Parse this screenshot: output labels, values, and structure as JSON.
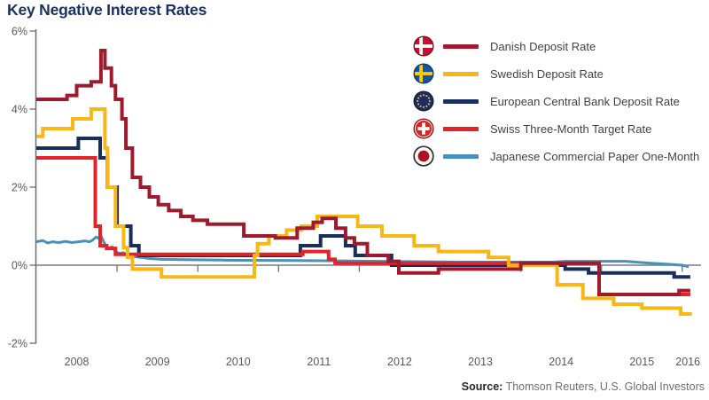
{
  "title": "Key Negative Interest Rates",
  "source": {
    "label": "Source:",
    "text": " Thomson Reuters, U.S. Global Investors"
  },
  "chart_data": {
    "type": "line",
    "step": true,
    "title": "Key Negative Interest Rates",
    "xlabel": "",
    "ylabel": "",
    "grid": false,
    "legend_position": "upper right",
    "xlim": [
      2008,
      2016.2
    ],
    "ylim": [
      -2,
      6
    ],
    "x_axis": {
      "labels": [
        "2008",
        "2009",
        "2010",
        "2011",
        "2012",
        "2013",
        "2014",
        "2015",
        "2016"
      ],
      "tick_years": [
        2009,
        2010,
        2011,
        2012,
        2013,
        2014,
        2015,
        2016
      ]
    },
    "y_axis": {
      "ticks": [
        {
          "label": "6%",
          "value": 6
        },
        {
          "label": "4%",
          "value": 4
        },
        {
          "label": "2%",
          "value": 2
        },
        {
          "label": "0%",
          "value": 0
        },
        {
          "label": "-2%",
          "value": -2
        }
      ]
    },
    "axis_color": "#6D6E71",
    "zero_line_color": "#7B7C7F",
    "tick_label_color": "#58595B",
    "series": [
      {
        "name": "Danish Deposit Rate",
        "flag": "denmark",
        "color": "#9E1B2E",
        "line_width": 4,
        "points": [
          [
            2008.0,
            4.25
          ],
          [
            2008.38,
            4.25
          ],
          [
            2008.38,
            4.35
          ],
          [
            2008.5,
            4.35
          ],
          [
            2008.5,
            4.6
          ],
          [
            2008.68,
            4.6
          ],
          [
            2008.68,
            4.7
          ],
          [
            2008.8,
            4.7
          ],
          [
            2008.8,
            5.5
          ],
          [
            2008.85,
            5.5
          ],
          [
            2008.85,
            5.05
          ],
          [
            2008.93,
            5.05
          ],
          [
            2008.93,
            4.6
          ],
          [
            2008.98,
            4.6
          ],
          [
            2008.98,
            4.25
          ],
          [
            2009.06,
            4.25
          ],
          [
            2009.06,
            3.75
          ],
          [
            2009.11,
            3.75
          ],
          [
            2009.11,
            3.0
          ],
          [
            2009.19,
            3.0
          ],
          [
            2009.19,
            2.25
          ],
          [
            2009.29,
            2.25
          ],
          [
            2009.29,
            2.0
          ],
          [
            2009.4,
            2.0
          ],
          [
            2009.4,
            1.75
          ],
          [
            2009.51,
            1.75
          ],
          [
            2009.51,
            1.55
          ],
          [
            2009.64,
            1.55
          ],
          [
            2009.64,
            1.4
          ],
          [
            2009.79,
            1.4
          ],
          [
            2009.79,
            1.25
          ],
          [
            2009.94,
            1.25
          ],
          [
            2009.94,
            1.15
          ],
          [
            2010.12,
            1.15
          ],
          [
            2010.12,
            1.05
          ],
          [
            2010.57,
            1.05
          ],
          [
            2010.57,
            0.75
          ],
          [
            2010.96,
            0.75
          ],
          [
            2010.96,
            0.7
          ],
          [
            2011.23,
            0.7
          ],
          [
            2011.23,
            0.95
          ],
          [
            2011.43,
            0.95
          ],
          [
            2011.43,
            1.1
          ],
          [
            2011.54,
            1.1
          ],
          [
            2011.54,
            1.2
          ],
          [
            2011.71,
            1.2
          ],
          [
            2011.71,
            0.95
          ],
          [
            2011.83,
            0.95
          ],
          [
            2011.83,
            0.7
          ],
          [
            2011.94,
            0.7
          ],
          [
            2011.94,
            0.55
          ],
          [
            2012.1,
            0.55
          ],
          [
            2012.1,
            0.25
          ],
          [
            2012.36,
            0.25
          ],
          [
            2012.36,
            0.1
          ],
          [
            2012.49,
            0.1
          ],
          [
            2012.49,
            -0.2
          ],
          [
            2012.98,
            -0.2
          ],
          [
            2012.98,
            -0.1
          ],
          [
            2014.0,
            -0.1
          ],
          [
            2014.0,
            0.05
          ],
          [
            2014.97,
            0.05
          ],
          [
            2014.97,
            -0.75
          ],
          [
            2015.96,
            -0.75
          ],
          [
            2015.96,
            -0.65
          ],
          [
            2016.1,
            -0.65
          ]
        ]
      },
      {
        "name": "Swedish Deposit Rate",
        "flag": "sweden",
        "color": "#F9B716",
        "line_width": 4,
        "points": [
          [
            2008.0,
            3.3
          ],
          [
            2008.08,
            3.3
          ],
          [
            2008.08,
            3.5
          ],
          [
            2008.45,
            3.5
          ],
          [
            2008.45,
            3.75
          ],
          [
            2008.68,
            3.75
          ],
          [
            2008.68,
            4.0
          ],
          [
            2008.85,
            4.0
          ],
          [
            2008.85,
            3.0
          ],
          [
            2008.88,
            3.0
          ],
          [
            2008.88,
            2.0
          ],
          [
            2008.98,
            2.0
          ],
          [
            2008.98,
            1.0
          ],
          [
            2009.08,
            1.0
          ],
          [
            2009.08,
            0.45
          ],
          [
            2009.13,
            0.45
          ],
          [
            2009.13,
            0.2
          ],
          [
            2009.19,
            0.2
          ],
          [
            2009.19,
            -0.1
          ],
          [
            2009.55,
            -0.1
          ],
          [
            2009.55,
            -0.3
          ],
          [
            2010.7,
            -0.3
          ],
          [
            2010.7,
            0.25
          ],
          [
            2010.74,
            0.25
          ],
          [
            2010.74,
            0.55
          ],
          [
            2010.88,
            0.55
          ],
          [
            2010.88,
            0.75
          ],
          [
            2011.1,
            0.75
          ],
          [
            2011.1,
            0.9
          ],
          [
            2011.28,
            0.9
          ],
          [
            2011.28,
            1.0
          ],
          [
            2011.48,
            1.0
          ],
          [
            2011.48,
            1.25
          ],
          [
            2011.98,
            1.25
          ],
          [
            2011.98,
            1.0
          ],
          [
            2012.28,
            1.0
          ],
          [
            2012.28,
            0.75
          ],
          [
            2012.68,
            0.75
          ],
          [
            2012.68,
            0.5
          ],
          [
            2012.98,
            0.5
          ],
          [
            2012.98,
            0.35
          ],
          [
            2013.6,
            0.35
          ],
          [
            2013.6,
            0.2
          ],
          [
            2013.85,
            0.2
          ],
          [
            2013.85,
            0.0
          ],
          [
            2014.45,
            0.0
          ],
          [
            2014.45,
            -0.5
          ],
          [
            2014.77,
            -0.5
          ],
          [
            2014.77,
            -0.85
          ],
          [
            2015.15,
            -0.85
          ],
          [
            2015.15,
            -1.0
          ],
          [
            2015.5,
            -1.0
          ],
          [
            2015.5,
            -1.1
          ],
          [
            2015.98,
            -1.1
          ],
          [
            2015.98,
            -1.25
          ],
          [
            2016.12,
            -1.25
          ]
        ]
      },
      {
        "name": "European Central Bank Deposit Rate",
        "flag": "eu",
        "color": "#1A2E5A",
        "line_width": 4,
        "points": [
          [
            2008.0,
            3.0
          ],
          [
            2008.52,
            3.0
          ],
          [
            2008.52,
            3.25
          ],
          [
            2008.79,
            3.25
          ],
          [
            2008.79,
            2.75
          ],
          [
            2008.88,
            2.75
          ],
          [
            2008.88,
            2.0
          ],
          [
            2009.0,
            2.0
          ],
          [
            2009.0,
            1.0
          ],
          [
            2009.17,
            1.0
          ],
          [
            2009.17,
            0.5
          ],
          [
            2009.27,
            0.5
          ],
          [
            2009.27,
            0.25
          ],
          [
            2011.27,
            0.25
          ],
          [
            2011.27,
            0.5
          ],
          [
            2011.52,
            0.5
          ],
          [
            2011.52,
            0.75
          ],
          [
            2011.83,
            0.75
          ],
          [
            2011.83,
            0.5
          ],
          [
            2011.95,
            0.5
          ],
          [
            2011.95,
            0.25
          ],
          [
            2012.4,
            0.25
          ],
          [
            2012.4,
            0.0
          ],
          [
            2014.55,
            0.0
          ],
          [
            2014.55,
            -0.1
          ],
          [
            2014.84,
            -0.1
          ],
          [
            2014.84,
            -0.2
          ],
          [
            2015.9,
            -0.2
          ],
          [
            2015.9,
            -0.3
          ],
          [
            2016.1,
            -0.3
          ]
        ]
      },
      {
        "name": "Swiss Three-Month Target Rate",
        "flag": "switzerland",
        "color": "#E1242A",
        "line_width": 4,
        "points": [
          [
            2008.0,
            2.75
          ],
          [
            2008.73,
            2.75
          ],
          [
            2008.73,
            1.0
          ],
          [
            2008.79,
            1.0
          ],
          [
            2008.79,
            0.5
          ],
          [
            2008.87,
            0.5
          ],
          [
            2008.87,
            0.43
          ],
          [
            2008.98,
            0.43
          ],
          [
            2008.98,
            0.28
          ],
          [
            2011.3,
            0.28
          ],
          [
            2011.3,
            0.35
          ],
          [
            2011.62,
            0.35
          ],
          [
            2011.62,
            0.15
          ],
          [
            2011.7,
            0.15
          ],
          [
            2011.7,
            0.05
          ],
          [
            2014.97,
            0.05
          ],
          [
            2014.97,
            -0.75
          ],
          [
            2016.1,
            -0.75
          ]
        ]
      },
      {
        "name": "Japanese Commercial Paper One-Month",
        "flag": "japan",
        "color": "#4A90B8",
        "line_width": 3,
        "points": [
          [
            2008.0,
            0.6
          ],
          [
            2008.08,
            0.63
          ],
          [
            2008.14,
            0.57
          ],
          [
            2008.2,
            0.6
          ],
          [
            2008.28,
            0.58
          ],
          [
            2008.36,
            0.61
          ],
          [
            2008.44,
            0.58
          ],
          [
            2008.52,
            0.6
          ],
          [
            2008.6,
            0.62
          ],
          [
            2008.66,
            0.6
          ],
          [
            2008.7,
            0.65
          ],
          [
            2008.74,
            0.72
          ],
          [
            2008.78,
            0.68
          ],
          [
            2008.8,
            0.75
          ],
          [
            2008.83,
            0.62
          ],
          [
            2008.86,
            0.5
          ],
          [
            2008.9,
            0.44
          ],
          [
            2008.94,
            0.47
          ],
          [
            2008.98,
            0.35
          ],
          [
            2009.03,
            0.3
          ],
          [
            2009.08,
            0.32
          ],
          [
            2009.13,
            0.24
          ],
          [
            2009.2,
            0.22
          ],
          [
            2009.3,
            0.2
          ],
          [
            2009.4,
            0.17
          ],
          [
            2009.55,
            0.15
          ],
          [
            2009.8,
            0.14
          ],
          [
            2010.3,
            0.13
          ],
          [
            2011.2,
            0.12
          ],
          [
            2012.3,
            0.1
          ],
          [
            2013.3,
            0.08
          ],
          [
            2014.4,
            0.08
          ],
          [
            2014.55,
            0.1
          ],
          [
            2015.3,
            0.1
          ],
          [
            2015.55,
            0.06
          ],
          [
            2015.8,
            0.03
          ],
          [
            2016.0,
            0.0
          ],
          [
            2016.08,
            -0.04
          ]
        ]
      }
    ]
  }
}
